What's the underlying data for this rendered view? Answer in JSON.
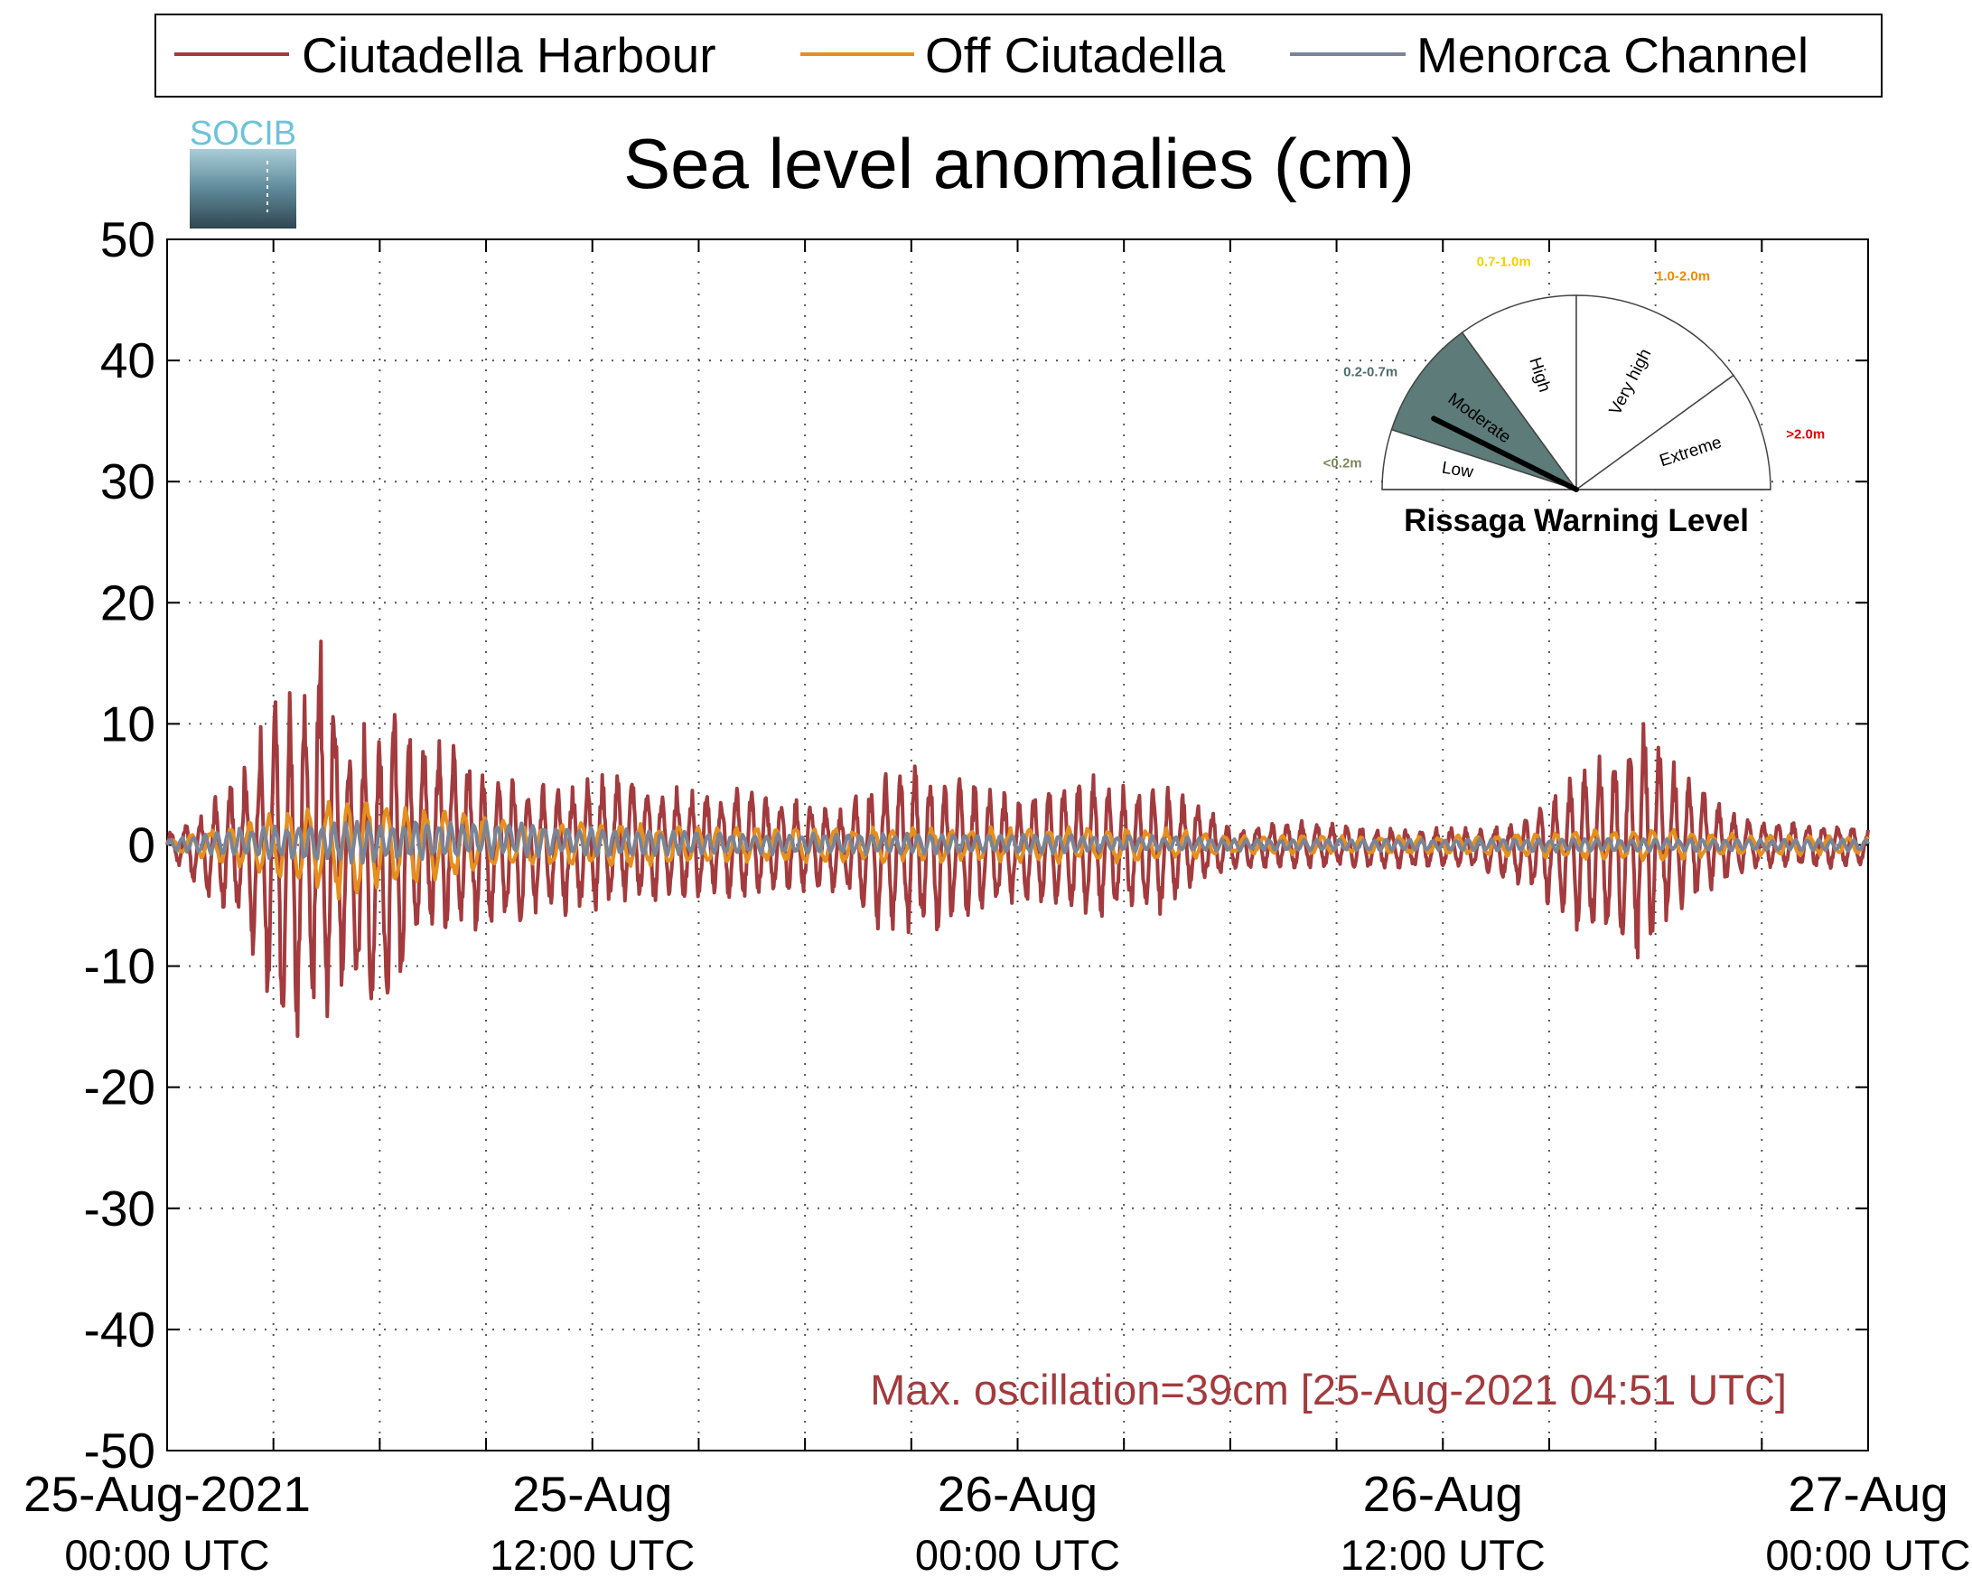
{
  "logo": {
    "text": "SOCIB"
  },
  "chart_data": {
    "type": "line",
    "title": "Sea level anomalies (cm)",
    "xlabel": "",
    "ylabel": "",
    "ylim": [
      -50,
      50
    ],
    "yticks": [
      50,
      40,
      30,
      20,
      10,
      0,
      -10,
      -20,
      -30,
      -40,
      -50
    ],
    "xlim_hours": [
      0,
      48
    ],
    "x_tick_labels": [
      {
        "date": "25-Aug-2021",
        "time": "00:00 UTC"
      },
      {
        "date": "25-Aug",
        "time": "12:00 UTC"
      },
      {
        "date": "26-Aug",
        "time": "00:00 UTC"
      },
      {
        "date": "26-Aug",
        "time": "12:00 UTC"
      },
      {
        "date": "27-Aug",
        "time": "00:00 UTC"
      }
    ],
    "grid": true,
    "legend_position": "top",
    "annotation": "Max. oscillation=39cm [25-Aug-2021 04:51 UTC]",
    "series": [
      {
        "name": "Ciutadella Harbour",
        "color": "#a33b3e",
        "note": "envelope of high-frequency oscillation (hours since 25-Aug-2021 00:00 UTC, cm)",
        "x": [
          0,
          1,
          2,
          2.5,
          3,
          3.5,
          4,
          4.3,
          4.85,
          5,
          5.5,
          6,
          6.5,
          7,
          7.5,
          8,
          9,
          10,
          11,
          12,
          13,
          14,
          15,
          15.5,
          16,
          17,
          18,
          19,
          20,
          21,
          22,
          23,
          24,
          25,
          26,
          27,
          28,
          29,
          30,
          31,
          32,
          33,
          34,
          35,
          36,
          37,
          38,
          39,
          40,
          41,
          41.5,
          42,
          42.5,
          43,
          44,
          45,
          46,
          47,
          48
        ],
        "upper": [
          1,
          3,
          6,
          9,
          13,
          13,
          14,
          20,
          13,
          9,
          11,
          11,
          12,
          10,
          9,
          9,
          6,
          6,
          5,
          6,
          6,
          5,
          5,
          4,
          5,
          4,
          4,
          3,
          6,
          7,
          6,
          5,
          4,
          5,
          6,
          5,
          5,
          4,
          1.5,
          2,
          2,
          2,
          1.5,
          1.5,
          1.5,
          1.5,
          2,
          4,
          7,
          8,
          12,
          9,
          7,
          6,
          3,
          2,
          2,
          2,
          1.5
        ],
        "lower": [
          -1,
          -4,
          -7,
          -10,
          -15,
          -17,
          -14,
          -19,
          -13,
          -12,
          -15,
          -17,
          -13,
          -10,
          -8,
          -8,
          -7,
          -7,
          -6,
          -6,
          -5,
          -5,
          -5,
          -4,
          -5,
          -4,
          -4,
          -4,
          -7,
          -8,
          -7,
          -6,
          -5,
          -6,
          -7,
          -6,
          -6,
          -4,
          -2,
          -2,
          -2,
          -2,
          -2,
          -2,
          -2,
          -2,
          -3,
          -5,
          -8,
          -9,
          -11,
          -8,
          -6,
          -5,
          -3,
          -2,
          -2,
          -2,
          -2
        ]
      },
      {
        "name": "Off Ciutadella",
        "color": "#e58f1f",
        "note": "envelope (cm)",
        "x": [
          0,
          2,
          4,
          5,
          6,
          8,
          10,
          12,
          16,
          20,
          24,
          28,
          30,
          36,
          40,
          42,
          44,
          48
        ],
        "upper": [
          0.5,
          2,
          3.5,
          4.5,
          4,
          3,
          2,
          2,
          1.5,
          1.5,
          1.5,
          1.5,
          0.8,
          0.8,
          1.2,
          1.5,
          1,
          0.8
        ],
        "lower": [
          -0.5,
          -2,
          -3.5,
          -5,
          -4,
          -3,
          -2,
          -2,
          -1.5,
          -1.5,
          -1.5,
          -1.5,
          -0.8,
          -0.8,
          -1.2,
          -1.5,
          -1,
          -0.8
        ]
      },
      {
        "name": "Menorca Channel",
        "color": "#7a8497",
        "note": "envelope (cm)",
        "x": [
          0,
          2,
          4,
          6,
          8,
          10,
          12,
          16,
          20,
          24,
          28,
          30,
          36,
          40,
          44,
          48
        ],
        "upper": [
          0.5,
          1.5,
          2,
          2,
          2,
          2,
          1.5,
          1,
          1,
          1,
          0.8,
          0.5,
          0.5,
          0.6,
          0.5,
          0.5
        ],
        "lower": [
          -0.5,
          -1,
          -1.5,
          -1.5,
          -1.2,
          -1,
          -1,
          -0.8,
          -0.8,
          -0.8,
          -0.6,
          -0.5,
          -0.5,
          -0.6,
          -0.5,
          -0.5
        ]
      }
    ]
  },
  "gauge": {
    "title": "Rissaga Warning Level",
    "sectors": [
      {
        "label": "Low",
        "range_label": "<0.2m",
        "range_color": "#7a8a5a"
      },
      {
        "label": "Moderate",
        "range_label": "0.2-0.7m",
        "range_color": "#4f6b6b"
      },
      {
        "label": "High",
        "range_label": "0.7-1.0m",
        "range_color": "#f2d200"
      },
      {
        "label": "Very high",
        "range_label": "1.0-2.0m",
        "range_color": "#f08a00"
      },
      {
        "label": "Extreme",
        "range_label": ">2.0m",
        "range_color": "#e60000"
      }
    ],
    "active_sector": "Moderate",
    "active_fill": "#5c7b79",
    "needle_fraction": 0.147
  }
}
